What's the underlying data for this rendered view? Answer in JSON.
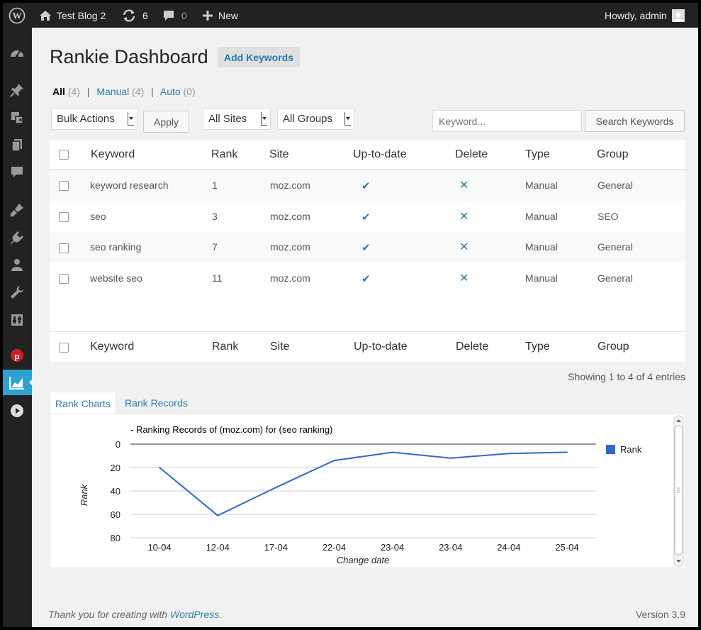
{
  "adminbar": {
    "site_name": "Test Blog 2",
    "updates_count": "6",
    "comments_count": "0",
    "new_label": "New",
    "howdy": "Howdy, admin"
  },
  "page": {
    "title": "Rankie Dashboard",
    "add_button": "Add Keywords"
  },
  "filters": {
    "all_label": "All",
    "all_count": "(4)",
    "manual_label": "Manual",
    "manual_count": "(4)",
    "auto_label": "Auto",
    "auto_count": "(0)"
  },
  "toolbar": {
    "bulk_actions": "Bulk Actions",
    "apply": "Apply",
    "all_sites": "All Sites",
    "all_groups": "All Groups",
    "keyword_placeholder": "Keyword...",
    "search_button": "Search Keywords"
  },
  "table": {
    "columns": [
      "Keyword",
      "Rank",
      "Site",
      "Up-to-date",
      "Delete",
      "Type",
      "Group"
    ],
    "rows": [
      {
        "keyword": "keyword research",
        "rank": "1",
        "site": "moz.com",
        "type": "Manual",
        "group": "General"
      },
      {
        "keyword": "seo",
        "rank": "3",
        "site": "moz.com",
        "type": "Manual",
        "group": "SEO"
      },
      {
        "keyword": "seo ranking",
        "rank": "7",
        "site": "moz.com",
        "type": "Manual",
        "group": "General"
      },
      {
        "keyword": "website seo",
        "rank": "11",
        "site": "moz.com",
        "type": "Manual",
        "group": "General"
      }
    ],
    "entries_info": "Showing 1 to 4 of 4 entries"
  },
  "tabs": {
    "rank_charts": "Rank Charts",
    "rank_records": "Rank Records"
  },
  "chart_data": {
    "type": "line",
    "title": "- Ranking Records of (moz.com) for (seo ranking)",
    "xlabel": "Change date",
    "ylabel": "Rank",
    "categories": [
      "10-04",
      "12-04",
      "17-04",
      "22-04",
      "23-04",
      "23-04",
      "24-04",
      "25-04"
    ],
    "series": [
      {
        "name": "Rank",
        "values": [
          20,
          61,
          37,
          14,
          7,
          12,
          8,
          7
        ]
      }
    ],
    "ylim": [
      0,
      80
    ],
    "y_ticks": [
      "0",
      "20",
      "40",
      "60",
      "80"
    ],
    "y_inverted": true,
    "grid": true,
    "legend": "right",
    "color": "#3366cc"
  },
  "footer": {
    "thanks_prefix": "Thank you for creating with ",
    "wordpress_link": "WordPress",
    "thanks_suffix": ".",
    "version": "Version 3.9"
  },
  "colors": {
    "accent": "#2a7cae",
    "menu_active": "#2ea2cc",
    "adminbar_bg": "#222222"
  }
}
